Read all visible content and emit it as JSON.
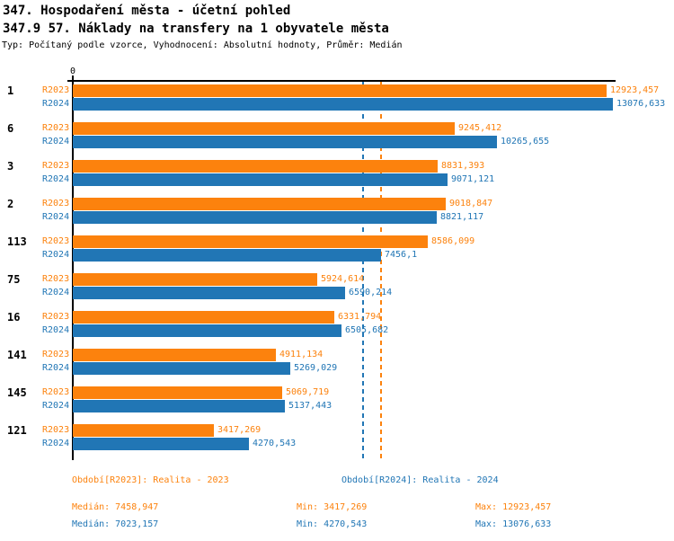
{
  "header": {
    "title": "347. Hospodaření města - účetní pohled",
    "subtitle": "347.9 57. Náklady na transfery na 1 obyvatele města",
    "meta": "Typ: Počítaný podle vzorce, Vyhodnocení: Absolutní hodnoty, Průměr: Medián"
  },
  "chart_data": {
    "type": "bar",
    "orientation": "horizontal",
    "title": "347.9 57. Náklady na transfery na 1 obyvatele města",
    "axis": {
      "origin_label": "0",
      "min": 0,
      "max": 13142
    },
    "grid": false,
    "legend_position": "bottom",
    "categories": [
      "1",
      "6",
      "3",
      "2",
      "113",
      "75",
      "16",
      "141",
      "145",
      "121"
    ],
    "series": [
      {
        "name": "R2023",
        "color": "#fc820d",
        "values": [
          12923.457,
          9245.412,
          8831.393,
          9018.847,
          8586.099,
          5924.614,
          6331.794,
          4911.134,
          5069.719,
          3417.269
        ],
        "value_labels": [
          "12923,457",
          "9245,412",
          "8831,393",
          "9018,847",
          "8586,099",
          "5924,614",
          "6331,794",
          "4911,134",
          "5069,719",
          "3417,269"
        ]
      },
      {
        "name": "R2024",
        "color": "#2176b5",
        "values": [
          13076.633,
          10265.655,
          9071.121,
          8821.117,
          7456.1,
          6590.214,
          6505.682,
          5269.029,
          5137.443,
          4270.543
        ],
        "value_labels": [
          "13076,633",
          "10265,655",
          "9071,121",
          "8821,117",
          "7456,1",
          "6590,214",
          "6505,682",
          "5269,029",
          "5137,443",
          "4270,543"
        ]
      }
    ],
    "reference_lines": [
      {
        "name": "median-r2023",
        "value": 7458.947,
        "color": "#fc820d",
        "style": "dashed"
      },
      {
        "name": "median-r2024",
        "value": 7023.157,
        "color": "#2176b5",
        "style": "dashed"
      }
    ]
  },
  "footer": {
    "legend": [
      {
        "label": "Období[R2023]: Realita - 2023",
        "color": "#fc820d"
      },
      {
        "label": "Období[R2024]: Realita - 2024",
        "color": "#2176b5"
      }
    ],
    "stats": [
      {
        "median": "Medián: 7458,947",
        "min": "Min: 3417,269",
        "max": "Max: 12923,457",
        "color": "#fc820d"
      },
      {
        "median": "Medián: 7023,157",
        "min": "Min: 4270,543",
        "max": "Max: 13076,633",
        "color": "#2176b5"
      }
    ]
  },
  "colors": {
    "axis": "#000000",
    "background": "#ffffff"
  }
}
